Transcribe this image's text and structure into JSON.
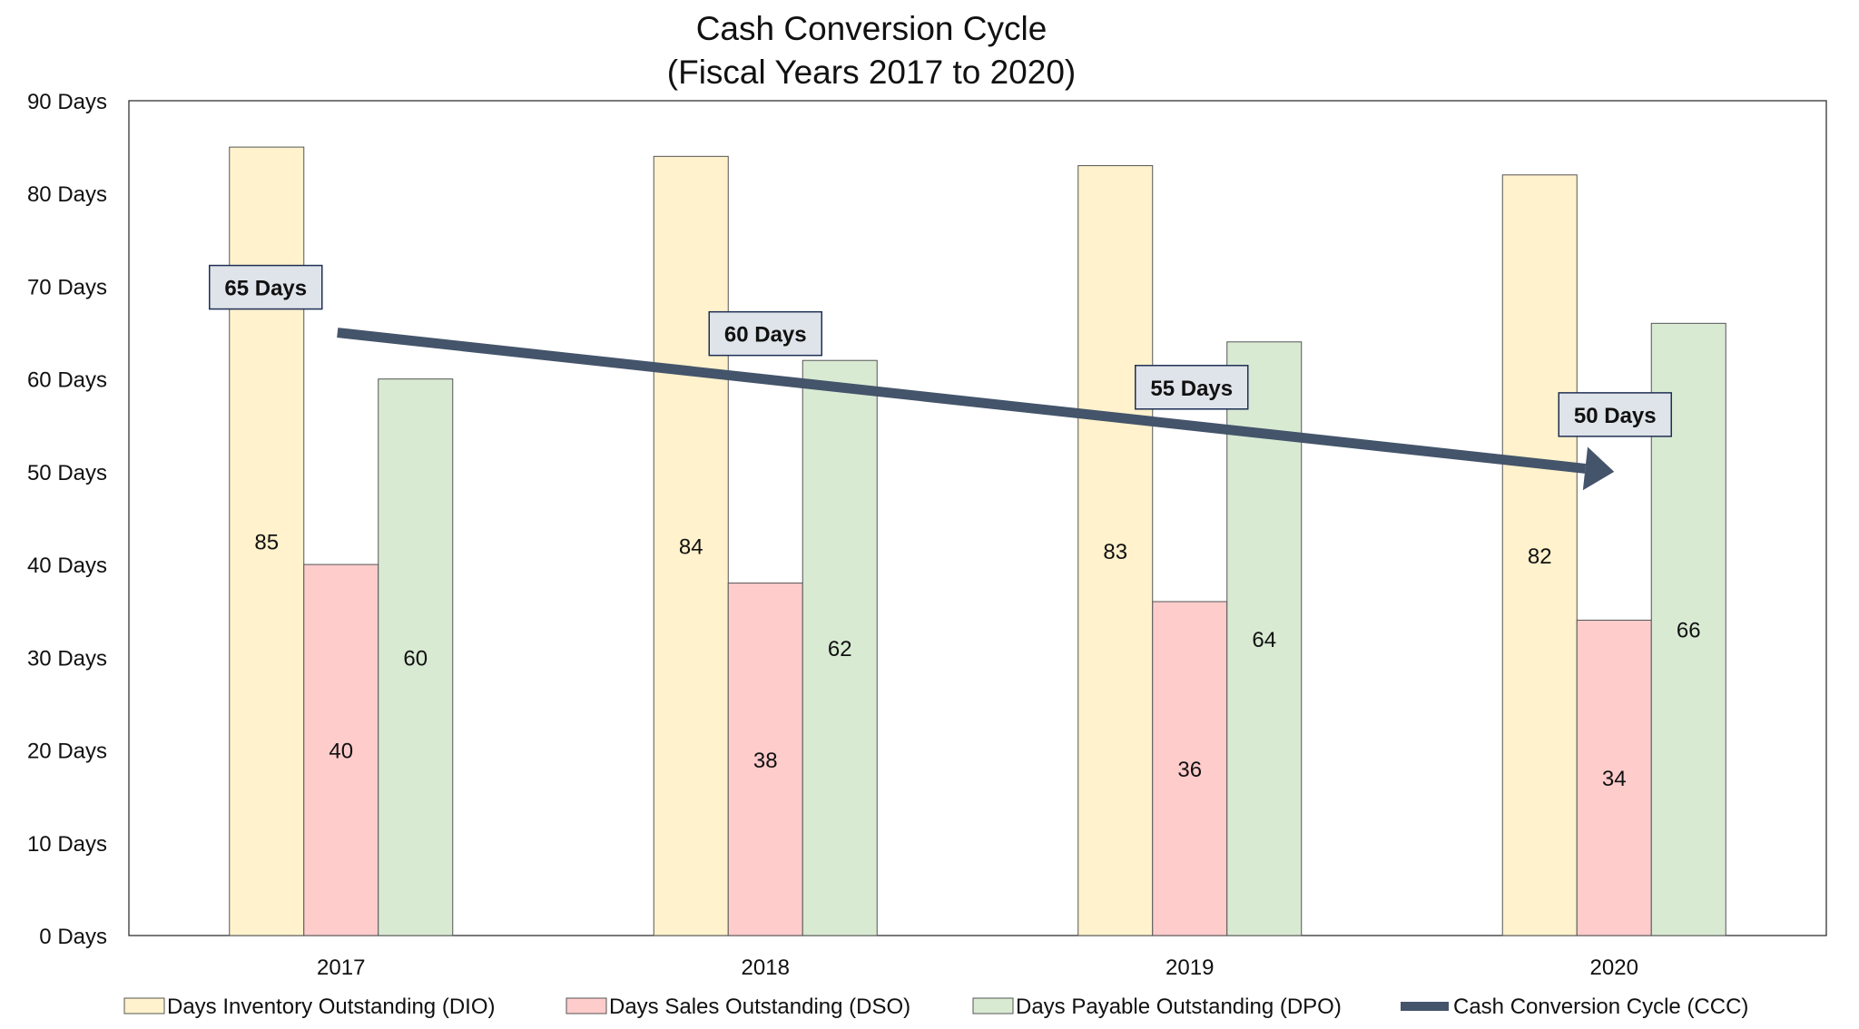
{
  "chart_data": {
    "type": "bar",
    "title": "Cash Conversion Cycle",
    "subtitle": "(Fiscal Years 2017 to 2020)",
    "categories": [
      "2017",
      "2018",
      "2019",
      "2020"
    ],
    "ylim": [
      0,
      90
    ],
    "yticks": [
      "0 Days",
      "10 Days",
      "20 Days",
      "30 Days",
      "40 Days",
      "50 Days",
      "60 Days",
      "70 Days",
      "80 Days",
      "90 Days"
    ],
    "grid": false,
    "legend_position": "bottom",
    "series": [
      {
        "name": "Days Inventory Outstanding (DIO)",
        "values": [
          85,
          84,
          83,
          82
        ],
        "color": "#fff2cc",
        "labels": [
          "85",
          "84",
          "83",
          "82"
        ]
      },
      {
        "name": "Days Sales Outstanding (DSO)",
        "values": [
          40,
          38,
          36,
          34
        ],
        "color": "#ffcccc",
        "labels": [
          "40",
          "38",
          "36",
          "34"
        ]
      },
      {
        "name": "Days Payable Outstanding (DPO)",
        "values": [
          60,
          62,
          64,
          66
        ],
        "color": "#d9ead3",
        "labels": [
          "60",
          "62",
          "64",
          "66"
        ]
      }
    ],
    "line_series": {
      "name": "Cash Conversion Cycle (CCC)",
      "type": "arrow",
      "values": [
        65,
        60,
        55,
        50
      ],
      "labels": [
        "65 Days",
        "60 Days",
        "55 Days",
        "50 Days"
      ],
      "color": "#44546a",
      "label_fill": "#dfe4ea"
    }
  }
}
